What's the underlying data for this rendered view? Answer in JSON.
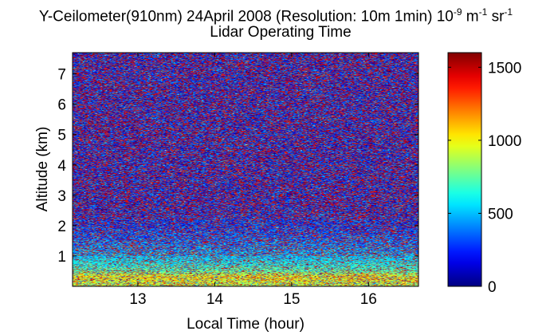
{
  "chart_data": {
    "type": "heatmap",
    "title_main": "Y-Ceilometer(910nm) 24April 2008 (Resolution: 10m 1min) ",
    "title_unit_base1": "10",
    "title_unit_exp1": "-9",
    "title_unit_base2": " m",
    "title_unit_exp2": "-1",
    "title_unit_base3": " sr",
    "title_unit_exp3": "-1",
    "subtitle": "Lidar Operating Time",
    "xlabel": "Local Time (hour)",
    "ylabel": "Altitude (km)",
    "xlim": [
      12.15,
      16.65
    ],
    "ylim": [
      0,
      7.7
    ],
    "x_ticks": [
      13,
      14,
      15,
      16
    ],
    "x_tick_labels": [
      "13",
      "14",
      "15",
      "16"
    ],
    "y_ticks": [
      1,
      2,
      3,
      4,
      5,
      6,
      7
    ],
    "y_tick_labels": [
      "1",
      "2",
      "3",
      "4",
      "5",
      "6",
      "7"
    ],
    "colorbar": {
      "colormap": "jet",
      "range": [
        0,
        1600
      ],
      "ticks": [
        0,
        500,
        1000,
        1500
      ],
      "tick_labels": [
        "0",
        "500",
        "1000",
        "1500"
      ]
    },
    "profile": [
      {
        "altitude_km": 0.1,
        "typical_value": 900
      },
      {
        "altitude_km": 0.3,
        "typical_value": 1000
      },
      {
        "altitude_km": 0.5,
        "typical_value": 750
      },
      {
        "altitude_km": 0.8,
        "typical_value": 600
      },
      {
        "altitude_km": 1.2,
        "typical_value": 450
      },
      {
        "altitude_km": 1.8,
        "typical_value": 300
      },
      {
        "altitude_km": 2.5,
        "typical_value": 200
      },
      {
        "altitude_km": 7.0,
        "typical_value": 200
      }
    ]
  }
}
